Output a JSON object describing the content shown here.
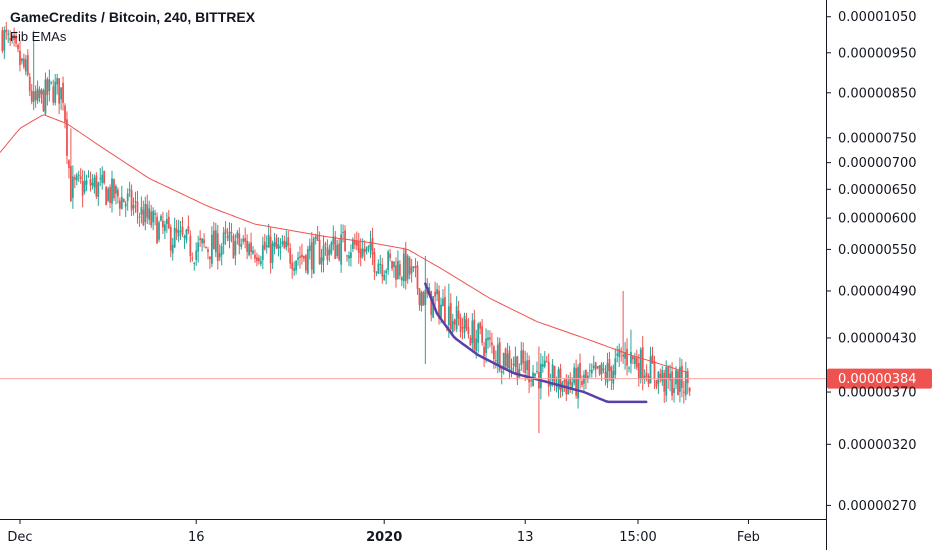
{
  "legend": {
    "title": "GameCredits / Bitcoin, 240, BITTREX",
    "indicator": "Fib EMAs"
  },
  "colors": {
    "up": "#26a69a",
    "down": "#ef5350",
    "ema": "#ef5350",
    "curve": "#5b3fa8",
    "last_price_line": "#f7a8a8",
    "tag_bg": "#ef5350",
    "axis": "#131722"
  },
  "chart_data": {
    "type": "candlestick",
    "symbol": "GameCredits / Bitcoin",
    "interval": "240",
    "exchange": "BITTREX",
    "indicator": "Fib EMAs",
    "y_ticks": [
      "0.00001050",
      "0.00000950",
      "0.00000850",
      "0.00000750",
      "0.00000700",
      "0.00000650",
      "0.00000600",
      "0.00000550",
      "0.00000490",
      "0.00000430",
      "0.00000370",
      "0.00000320",
      "0.00000270"
    ],
    "y_scale": "log",
    "ylim": [
      2.6e-06,
      1.1e-05
    ],
    "x_ticks": [
      {
        "label": "Dec",
        "day": 0,
        "bold": false
      },
      {
        "label": "16",
        "day": 15,
        "bold": false
      },
      {
        "label": "2020",
        "day": 31,
        "bold": true
      },
      {
        "label": "13",
        "day": 43,
        "bold": false
      },
      {
        "label": "15:00",
        "day": 52.6,
        "bold": false
      },
      {
        "label": "Feb",
        "day": 62,
        "bold": false
      }
    ],
    "xlim_days": [
      -1.7,
      68.6
    ],
    "last_price": "0.00000384",
    "ohlc_keypoints": [
      [
        -1.5,
        1e-05
      ],
      [
        0.5,
        9e-06
      ],
      [
        1.2,
        8.2e-06
      ],
      [
        2.8,
        8.6e-06
      ],
      [
        3.7,
        8.5e-06
      ],
      [
        4.3,
        6.5e-06
      ],
      [
        6.0,
        6.6e-06
      ],
      [
        9.0,
        6.3e-06
      ],
      [
        12.0,
        5.8e-06
      ],
      [
        15.0,
        5.5e-06
      ],
      [
        18.0,
        5.6e-06
      ],
      [
        21.0,
        5.5e-06
      ],
      [
        24.0,
        5.4e-06
      ],
      [
        28.0,
        5.6e-06
      ],
      [
        31.0,
        5.3e-06
      ],
      [
        33.0,
        5.2e-06
      ],
      [
        34.5,
        4.8e-06
      ],
      [
        36.0,
        4.7e-06
      ],
      [
        38.0,
        4.4e-06
      ],
      [
        41.0,
        4.1e-06
      ],
      [
        44.0,
        3.9e-06
      ],
      [
        46.0,
        3.8e-06
      ],
      [
        48.0,
        3.8e-06
      ],
      [
        50.0,
        3.9e-06
      ],
      [
        51.5,
        4.1e-06
      ],
      [
        53.0,
        4e-06
      ],
      [
        55.0,
        3.8e-06
      ],
      [
        57.0,
        3.8e-06
      ]
    ],
    "spikes": [
      {
        "day": 1.2,
        "high": 1.01e-05,
        "low": 8.1e-06
      },
      {
        "day": 4.3,
        "high": 7.7e-06,
        "low": 6.4e-06
      },
      {
        "day": 34.5,
        "high": 5.4e-06,
        "low": 4e-06
      },
      {
        "day": 36.5,
        "high": 5e-06,
        "low": 4.3e-06
      },
      {
        "day": 44.2,
        "high": 4.2e-06,
        "low": 3.3e-06
      },
      {
        "day": 51.3,
        "high": 4.9e-06,
        "low": 4e-06
      },
      {
        "day": 52.0,
        "high": 4.4e-06,
        "low": 3.9e-06
      }
    ],
    "ema_keypoints": [
      [
        -1.7,
        7.2e-06
      ],
      [
        0.0,
        7.7e-06
      ],
      [
        2.0,
        8e-06
      ],
      [
        4.0,
        7.8e-06
      ],
      [
        7.0,
        7.3e-06
      ],
      [
        11.0,
        6.7e-06
      ],
      [
        16.0,
        6.2e-06
      ],
      [
        20.0,
        5.9e-06
      ],
      [
        26.0,
        5.7e-06
      ],
      [
        30.0,
        5.6e-06
      ],
      [
        33.0,
        5.5e-06
      ],
      [
        36.0,
        5.2e-06
      ],
      [
        40.0,
        4.8e-06
      ],
      [
        44.0,
        4.5e-06
      ],
      [
        48.0,
        4.3e-06
      ],
      [
        52.0,
        4.1e-06
      ],
      [
        57.0,
        3.9e-06
      ]
    ],
    "curve_keypoints": [
      [
        34.5,
        5e-06
      ],
      [
        35.5,
        4.6e-06
      ],
      [
        37.0,
        4.3e-06
      ],
      [
        39.0,
        4.1e-06
      ],
      [
        42.0,
        3.9e-06
      ],
      [
        45.0,
        3.8e-06
      ],
      [
        48.0,
        3.7e-06
      ],
      [
        50.0,
        3.6e-06
      ],
      [
        53.5,
        3.6e-06
      ]
    ]
  }
}
